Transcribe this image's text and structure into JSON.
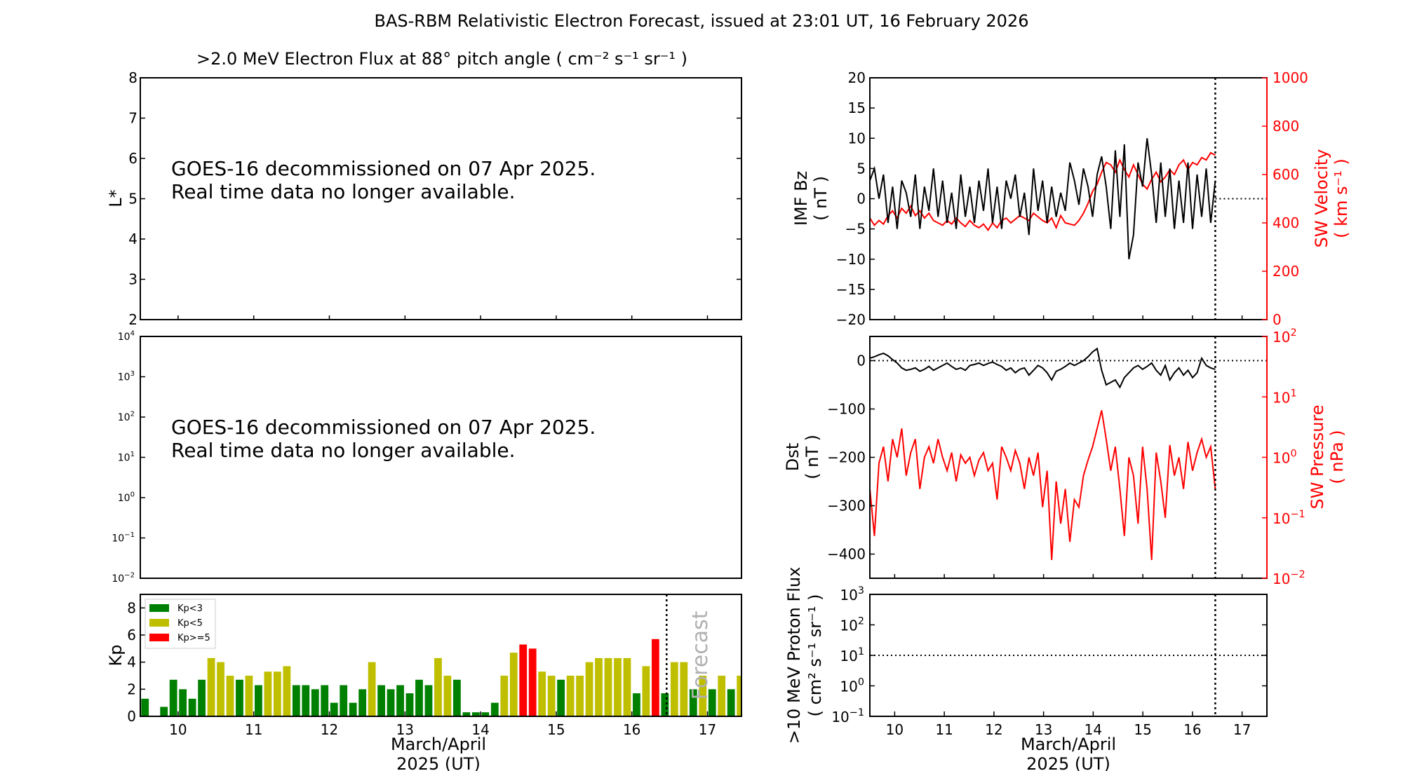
{
  "figure": {
    "title": "BAS-RBM Relativistic Electron Forecast, issued at 23:01 UT, 16 February 2026"
  },
  "colors": {
    "kp_low": "#008000",
    "kp_mid": "#bfbf00",
    "kp_high": "#ff0000",
    "imf": "#000000",
    "sw": "#ff0000",
    "annotation": "#b0b0b0"
  },
  "chart_data": [
    {
      "id": "lstar",
      "type": "heatmap",
      "title": ">2.0 MeV Electron Flux at 88° pitch angle ( cm⁻² s⁻¹ sr⁻¹ )",
      "ylabel": "L*",
      "ylim": [
        2,
        8
      ],
      "yticks": [
        "2",
        "3",
        "4",
        "5",
        "6",
        "7",
        "8"
      ],
      "message_lines": [
        "GOES-16 decommissioned on 07 Apr 2025.",
        "Real time data no longer available."
      ]
    },
    {
      "id": "flux-log",
      "type": "line",
      "ylim": [
        0.01,
        10000
      ],
      "yscale": "log",
      "yticks": [
        {
          "base": "10",
          "exp": "4"
        },
        {
          "base": "10",
          "exp": "3"
        },
        {
          "base": "10",
          "exp": "2"
        },
        {
          "base": "10",
          "exp": "1"
        },
        {
          "base": "10",
          "exp": "0"
        },
        {
          "base": "10",
          "exp": "−1"
        },
        {
          "base": "10",
          "exp": "−2"
        }
      ],
      "message_lines": [
        "GOES-16 decommissioned on 07 Apr 2025.",
        "Real time data no longer available."
      ]
    },
    {
      "id": "kp",
      "type": "bar",
      "ylabel": "Kp",
      "ylim": [
        0,
        9
      ],
      "yticks": [
        "0",
        "2",
        "4",
        "6",
        "8"
      ],
      "xlim": [
        9.5,
        17.45
      ],
      "xticks": [
        "10",
        "11",
        "12",
        "13",
        "14",
        "15",
        "16",
        "17"
      ],
      "xlabel_lines": [
        "March/April",
        "2025 (UT)"
      ],
      "now_marker": 16.46,
      "annotation": "Forecast",
      "legend": [
        "Kp<3",
        "Kp<5",
        "Kp>=5"
      ],
      "bar_width_days": 0.1,
      "start_day": 9.5625,
      "step_days": 0.125,
      "values": [
        1.3,
        0.0,
        0.7,
        2.7,
        2.0,
        1.3,
        2.7,
        4.3,
        4.0,
        3.0,
        2.7,
        3.0,
        2.3,
        3.3,
        3.3,
        3.7,
        2.3,
        2.3,
        2.0,
        2.3,
        1.0,
        2.3,
        1.0,
        2.0,
        4.0,
        2.3,
        2.0,
        2.3,
        1.7,
        2.7,
        2.3,
        4.3,
        3.0,
        2.7,
        0.3,
        0.3,
        0.3,
        1.0,
        3.0,
        4.7,
        5.3,
        5.0,
        3.3,
        3.0,
        2.7,
        3.0,
        3.0,
        4.0,
        4.3,
        4.3,
        4.3,
        4.3,
        1.7,
        3.7,
        5.7,
        1.7,
        4.0,
        4.0,
        2.0,
        3.0,
        2.0,
        3.0,
        2.0,
        3.0
      ]
    },
    {
      "id": "imf-sw",
      "type": "line",
      "ylabel_lines": [
        "IMF Bz",
        "( nT )"
      ],
      "ylim": [
        -20,
        20
      ],
      "yticks": [
        "−20",
        "−15",
        "−10",
        "−5",
        "0",
        "5",
        "10",
        "15",
        "20"
      ],
      "y2label_lines": [
        "SW Velocity",
        "( km s⁻¹ )"
      ],
      "y2lim": [
        0,
        1000
      ],
      "y2ticks": [
        "0",
        "200",
        "400",
        "600",
        "800",
        "1000"
      ],
      "xlim": [
        9.5,
        17.5
      ],
      "now_marker": 16.46,
      "series": [
        {
          "name": "IMF Bz",
          "color": "#000000",
          "x_start": 9.5,
          "x_end": 16.46,
          "values": [
            3,
            5,
            0,
            4,
            -4,
            2,
            -5,
            3,
            1,
            -3,
            4,
            -5,
            2,
            -2,
            5,
            -3,
            3,
            -4,
            1,
            -5,
            4,
            -3,
            2,
            -4,
            3,
            -2,
            5,
            -4,
            2,
            -5,
            3,
            0,
            4,
            -3,
            1,
            -6,
            5,
            -2,
            3,
            -4,
            2,
            -3,
            1,
            -2,
            6,
            3,
            -1,
            5,
            2,
            -3,
            4,
            7,
            2,
            -5,
            8,
            -3,
            9,
            -10,
            -6,
            6,
            2,
            10,
            4,
            -4,
            6,
            -3,
            5,
            -5,
            3,
            -4,
            6,
            -5,
            4,
            -3,
            5,
            -4,
            3
          ]
        },
        {
          "name": "SW Velocity",
          "color": "#ff0000",
          "x_start": 9.5,
          "x_end": 16.46,
          "values": [
            420,
            390,
            410,
            395,
            430,
            450,
            420,
            460,
            440,
            470,
            430,
            450,
            420,
            440,
            410,
            400,
            390,
            410,
            395,
            420,
            400,
            385,
            410,
            390,
            380,
            395,
            370,
            400,
            380,
            410,
            420,
            400,
            415,
            430,
            420,
            410,
            440,
            425,
            410,
            400,
            420,
            380,
            430,
            400,
            395,
            390,
            410,
            440,
            480,
            530,
            560,
            610,
            650,
            640,
            610,
            660,
            620,
            590,
            640,
            600,
            560,
            540,
            580,
            610,
            570,
            590,
            620,
            600,
            640,
            660,
            620,
            650,
            640,
            670,
            660,
            690,
            680
          ]
        }
      ]
    },
    {
      "id": "dst-pressure",
      "type": "line",
      "ylabel_lines": [
        "Dst",
        "( nT )"
      ],
      "ylim": [
        -450,
        50
      ],
      "yticks": [
        "−400",
        "−300",
        "−200",
        "−100",
        "0"
      ],
      "y2label_lines": [
        "SW Pressure",
        "( nPa )"
      ],
      "y2lim": [
        0.01,
        100
      ],
      "y2scale": "log",
      "y2ticks": [
        {
          "base": "10",
          "exp": "−2"
        },
        {
          "base": "10",
          "exp": "−1"
        },
        {
          "base": "10",
          "exp": "0"
        },
        {
          "base": "10",
          "exp": "1"
        },
        {
          "base": "10",
          "exp": "2"
        }
      ],
      "xlim": [
        9.5,
        17.5
      ],
      "now_marker": 16.46,
      "series": [
        {
          "name": "Dst",
          "color": "#000000",
          "x_start": 9.5,
          "x_end": 16.46,
          "values": [
            5,
            8,
            12,
            15,
            10,
            2,
            -5,
            -15,
            -20,
            -18,
            -15,
            -22,
            -18,
            -12,
            -20,
            -15,
            -10,
            -5,
            -12,
            -18,
            -15,
            -20,
            -10,
            -8,
            -5,
            -10,
            -6,
            -3,
            -8,
            -12,
            -20,
            -15,
            -25,
            -18,
            -15,
            -30,
            -20,
            -10,
            -15,
            -25,
            -40,
            -22,
            -18,
            -12,
            -5,
            -10,
            -5,
            0,
            8,
            18,
            25,
            -20,
            -50,
            -45,
            -40,
            -55,
            -35,
            -25,
            -15,
            -10,
            -18,
            -12,
            -5,
            -20,
            -30,
            -10,
            -40,
            -25,
            -15,
            -30,
            -20,
            -35,
            -25,
            5,
            -10,
            -15,
            -18
          ]
        },
        {
          "name": "SW Pressure",
          "color": "#ff0000",
          "x_start": 9.5,
          "x_end": 16.46,
          "values": [
            0.3,
            0.05,
            0.8,
            1.5,
            0.4,
            2.0,
            1.0,
            3.0,
            0.5,
            1.2,
            2.0,
            0.3,
            1.0,
            1.5,
            0.8,
            2.0,
            1.0,
            0.6,
            1.2,
            0.4,
            1.1,
            0.8,
            1.0,
            0.5,
            0.9,
            1.2,
            0.6,
            0.8,
            0.2,
            1.5,
            1.0,
            0.6,
            1.3,
            0.8,
            0.3,
            1.0,
            0.5,
            1.2,
            0.15,
            0.6,
            0.02,
            0.4,
            0.08,
            0.3,
            0.04,
            0.2,
            0.15,
            0.5,
            0.9,
            1.5,
            3.0,
            6.0,
            2.0,
            0.6,
            1.5,
            0.3,
            0.05,
            1.0,
            0.5,
            0.08,
            1.5,
            0.3,
            0.02,
            1.2,
            0.4,
            0.1,
            1.6,
            0.5,
            1.0,
            0.3,
            1.8,
            0.6,
            1.2,
            2.0,
            1.0,
            1.5,
            0.3
          ]
        }
      ]
    },
    {
      "id": "proton",
      "type": "line",
      "ylabel_lines": [
        ">10 MeV Proton Flux",
        "( cm² s⁻¹ sr⁻¹ )"
      ],
      "ylim": [
        0.1,
        1000
      ],
      "yscale": "log",
      "yticks": [
        {
          "base": "10",
          "exp": "3"
        },
        {
          "base": "10",
          "exp": "2"
        },
        {
          "base": "10",
          "exp": "1"
        },
        {
          "base": "10",
          "exp": "0"
        },
        {
          "base": "10",
          "exp": "−1"
        }
      ],
      "threshold": 10,
      "xlim": [
        9.5,
        17.5
      ],
      "xticks": [
        "10",
        "11",
        "12",
        "13",
        "14",
        "15",
        "16",
        "17"
      ],
      "xlabel_lines": [
        "March/April",
        "2025 (UT)"
      ],
      "now_marker": 16.46
    }
  ]
}
